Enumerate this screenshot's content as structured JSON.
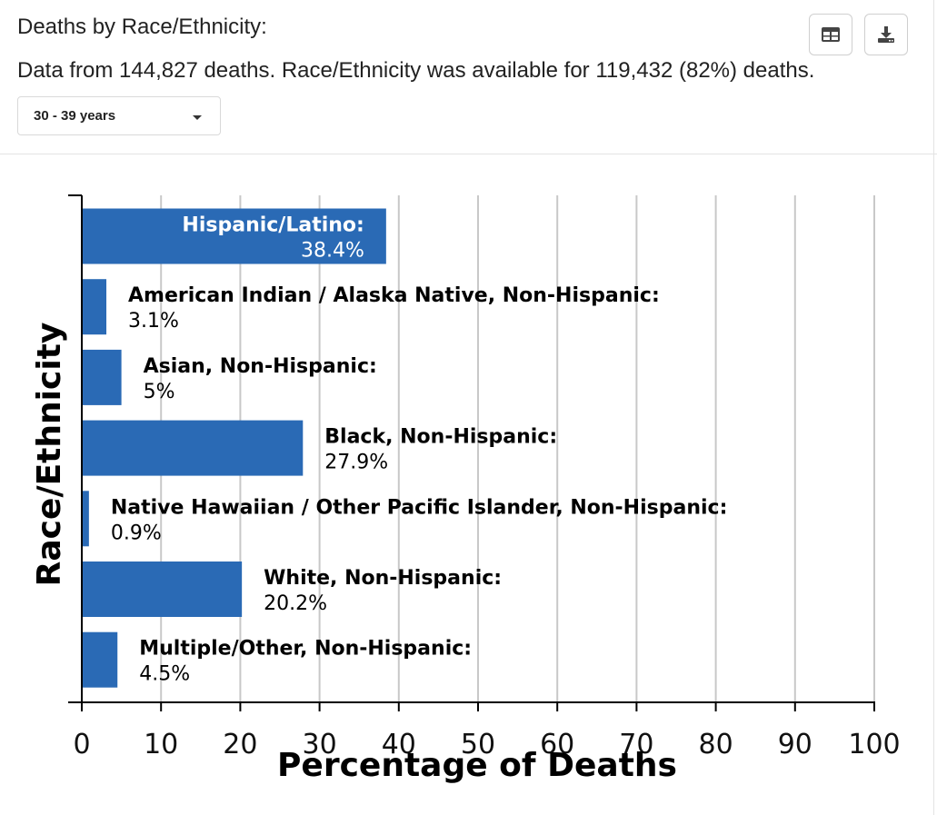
{
  "header": {
    "title": "Deaths by Race/Ethnicity:",
    "subtitle": "Data from 144,827 deaths. Race/Ethnicity was available for 119,432 (82%) deaths."
  },
  "toolbar": {
    "table_icon": "table-icon",
    "download_icon": "download-icon"
  },
  "filter": {
    "age_group": "30 - 39 years"
  },
  "colors": {
    "bar": "#2a6ab5",
    "grid": "#c8c8c8",
    "axis": "#000000"
  },
  "chart_data": {
    "type": "bar",
    "orientation": "horizontal",
    "title": "",
    "xlabel": "Percentage of Deaths",
    "ylabel": "Race/Ethnicity",
    "xlim": [
      0,
      100
    ],
    "xticks": [
      0,
      10,
      20,
      30,
      40,
      50,
      60,
      70,
      80,
      90,
      100
    ],
    "categories": [
      "Hispanic/Latino",
      "American Indian / Alaska Native, Non-Hispanic",
      "Asian, Non-Hispanic",
      "Black, Non-Hispanic",
      "Native Hawaiian / Other Pacific Islander, Non-Hispanic",
      "White, Non-Hispanic",
      "Multiple/Other, Non-Hispanic"
    ],
    "values": [
      38.4,
      3.1,
      5,
      27.9,
      0.9,
      20.2,
      4.5
    ],
    "value_labels": [
      "38.4%",
      "3.1%",
      "5%",
      "27.9%",
      "0.9%",
      "20.2%",
      "4.5%"
    ],
    "grid": true
  }
}
